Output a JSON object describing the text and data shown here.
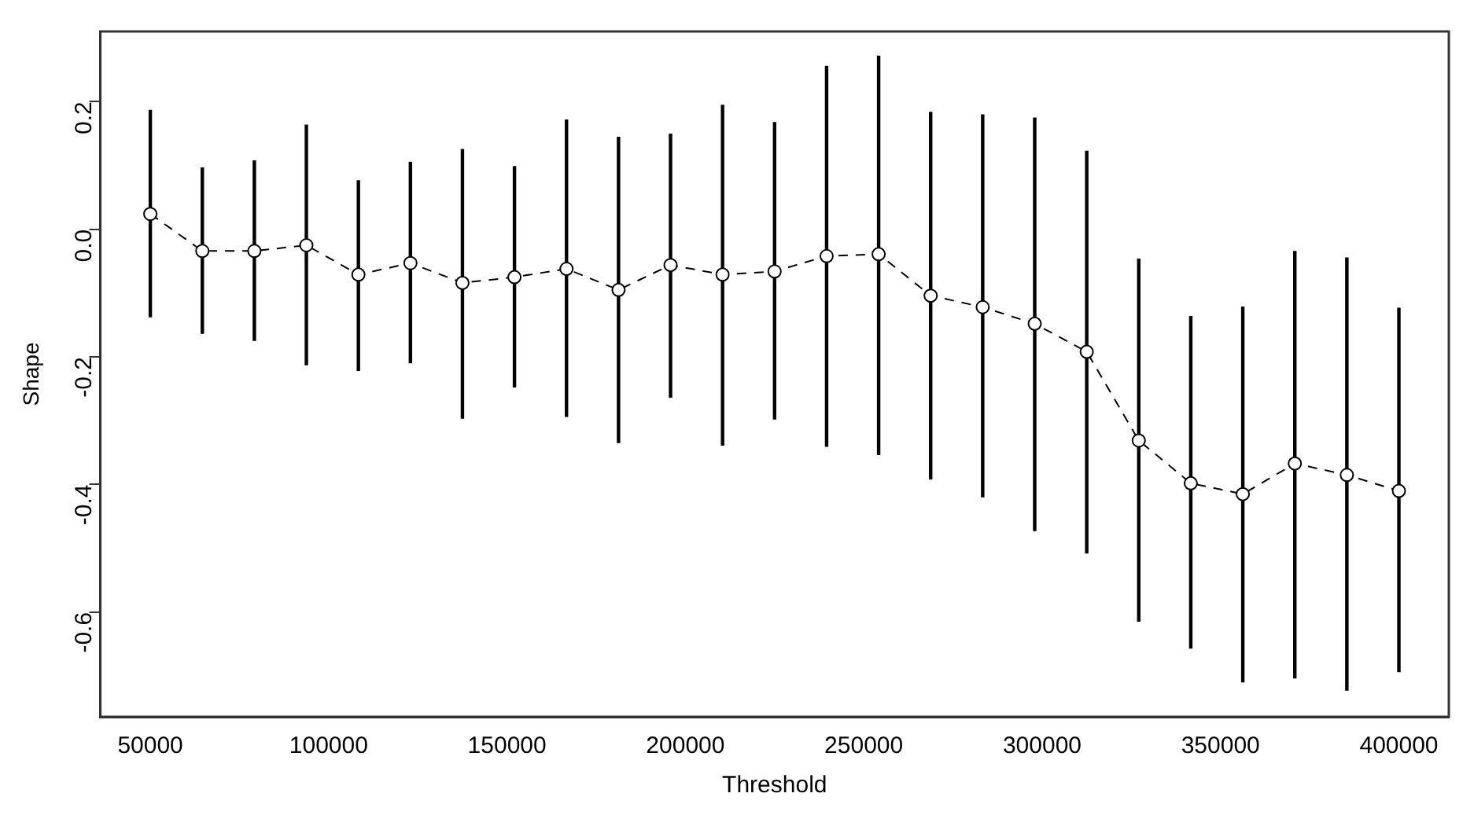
{
  "chart_data": {
    "type": "line",
    "xlabel": "Threshold",
    "ylabel": "Shape",
    "x": [
      50000,
      64583,
      79167,
      93750,
      108333,
      122917,
      137500,
      152083,
      166667,
      181250,
      195833,
      210417,
      225000,
      239583,
      254167,
      268750,
      283333,
      297917,
      312500,
      327083,
      341667,
      356250,
      370833,
      385417,
      400000
    ],
    "series": [
      {
        "color": "#000000",
        "marker": "circle",
        "line_style": "dashed",
        "values": [
          0.024,
          -0.034,
          -0.034,
          -0.025,
          -0.071,
          -0.053,
          -0.084,
          -0.075,
          -0.062,
          -0.095,
          -0.056,
          -0.071,
          -0.066,
          -0.042,
          -0.039,
          -0.104,
          -0.122,
          -0.148,
          -0.192,
          -0.331,
          -0.398,
          -0.415,
          -0.367,
          -0.385,
          -0.41
        ],
        "errors": [
          [
            -0.138,
            0.187
          ],
          [
            -0.164,
            0.097
          ],
          [
            -0.175,
            0.108
          ],
          [
            -0.213,
            0.164
          ],
          [
            -0.222,
            0.077
          ],
          [
            -0.21,
            0.106
          ],
          [
            -0.297,
            0.126
          ],
          [
            -0.248,
            0.099
          ],
          [
            -0.294,
            0.172
          ],
          [
            -0.335,
            0.145
          ],
          [
            -0.264,
            0.15
          ],
          [
            -0.339,
            0.195
          ],
          [
            -0.298,
            0.168
          ],
          [
            -0.341,
            0.256
          ],
          [
            -0.354,
            0.272
          ],
          [
            -0.392,
            0.184
          ],
          [
            -0.42,
            0.18
          ],
          [
            -0.473,
            0.175
          ],
          [
            -0.508,
            0.123
          ],
          [
            -0.615,
            -0.046
          ],
          [
            -0.657,
            -0.136
          ],
          [
            -0.71,
            -0.121
          ],
          [
            -0.704,
            -0.034
          ],
          [
            -0.723,
            -0.044
          ],
          [
            -0.694,
            -0.123
          ]
        ]
      }
    ],
    "xlim": [
      36000,
      414000
    ],
    "ylim": [
      -0.764,
      0.31
    ],
    "xticks": [
      50000,
      100000,
      150000,
      200000,
      250000,
      300000,
      350000,
      400000
    ],
    "yticks": [
      {
        "value": -0.6,
        "label": "-0.6"
      },
      {
        "value": -0.4,
        "label": "-0.4"
      },
      {
        "value": -0.2,
        "label": "-0.2"
      },
      {
        "value": 0,
        "label": "0.0"
      },
      {
        "value": 0.2,
        "label": "0.2"
      }
    ],
    "grid": false,
    "legend": false
  }
}
